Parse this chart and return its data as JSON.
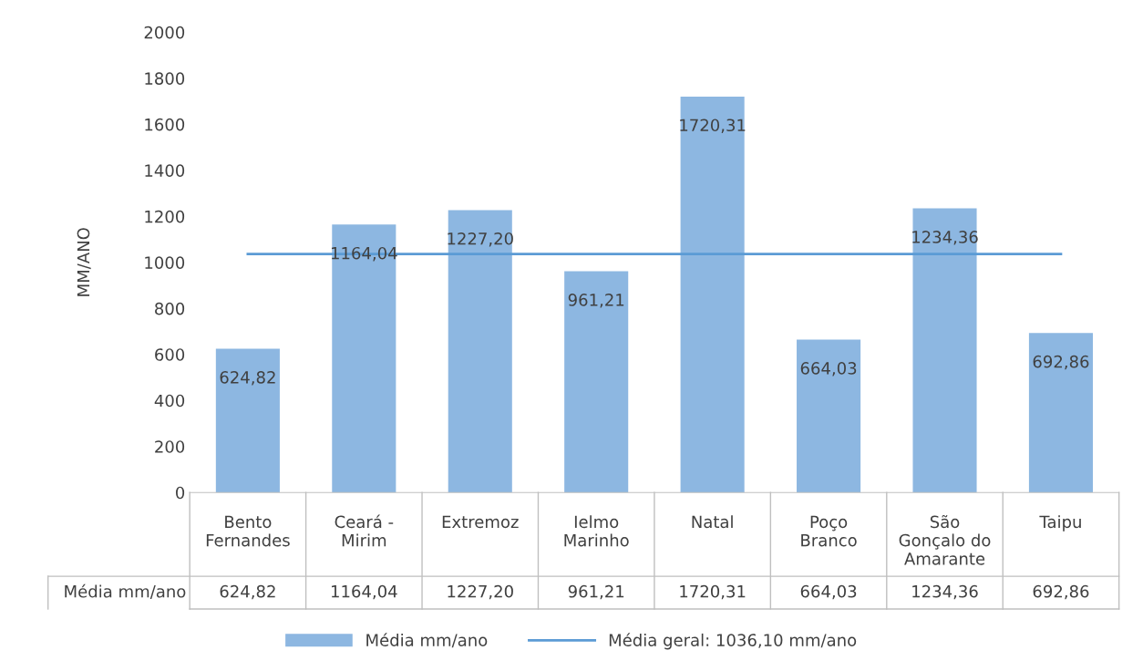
{
  "chart_data": {
    "type": "bar",
    "ylabel": "MM/ANO",
    "categories": [
      "Bento\nFernandes",
      "Ceará -\nMirim",
      "Extremoz",
      "Ielmo\nMarinho",
      "Natal",
      "Poço\nBranco",
      "São\nGonçalo do\nAmarante",
      "Taipu"
    ],
    "series": [
      {
        "name": "Média mm/ano",
        "color": "#8db7e1",
        "values": [
          624.82,
          1164.04,
          1227.2,
          961.21,
          1720.31,
          664.03,
          1234.36,
          692.86
        ],
        "value_labels": [
          "624,82",
          "1164,04",
          "1227,20",
          "961,21",
          "1720,31",
          "664,03",
          "1234,36",
          "692,86"
        ]
      }
    ],
    "ylim": [
      0,
      2000
    ],
    "yticks": [
      0,
      200,
      400,
      600,
      800,
      1000,
      1200,
      1400,
      1600,
      1800,
      2000
    ],
    "ref_lines": [
      {
        "axis": "y",
        "value": 1036.1,
        "label": "Média geral: 1036,10 mm/ano",
        "color": "#5b9bd5",
        "line_style": "solid"
      }
    ],
    "grid": false,
    "legend": "bottom"
  }
}
